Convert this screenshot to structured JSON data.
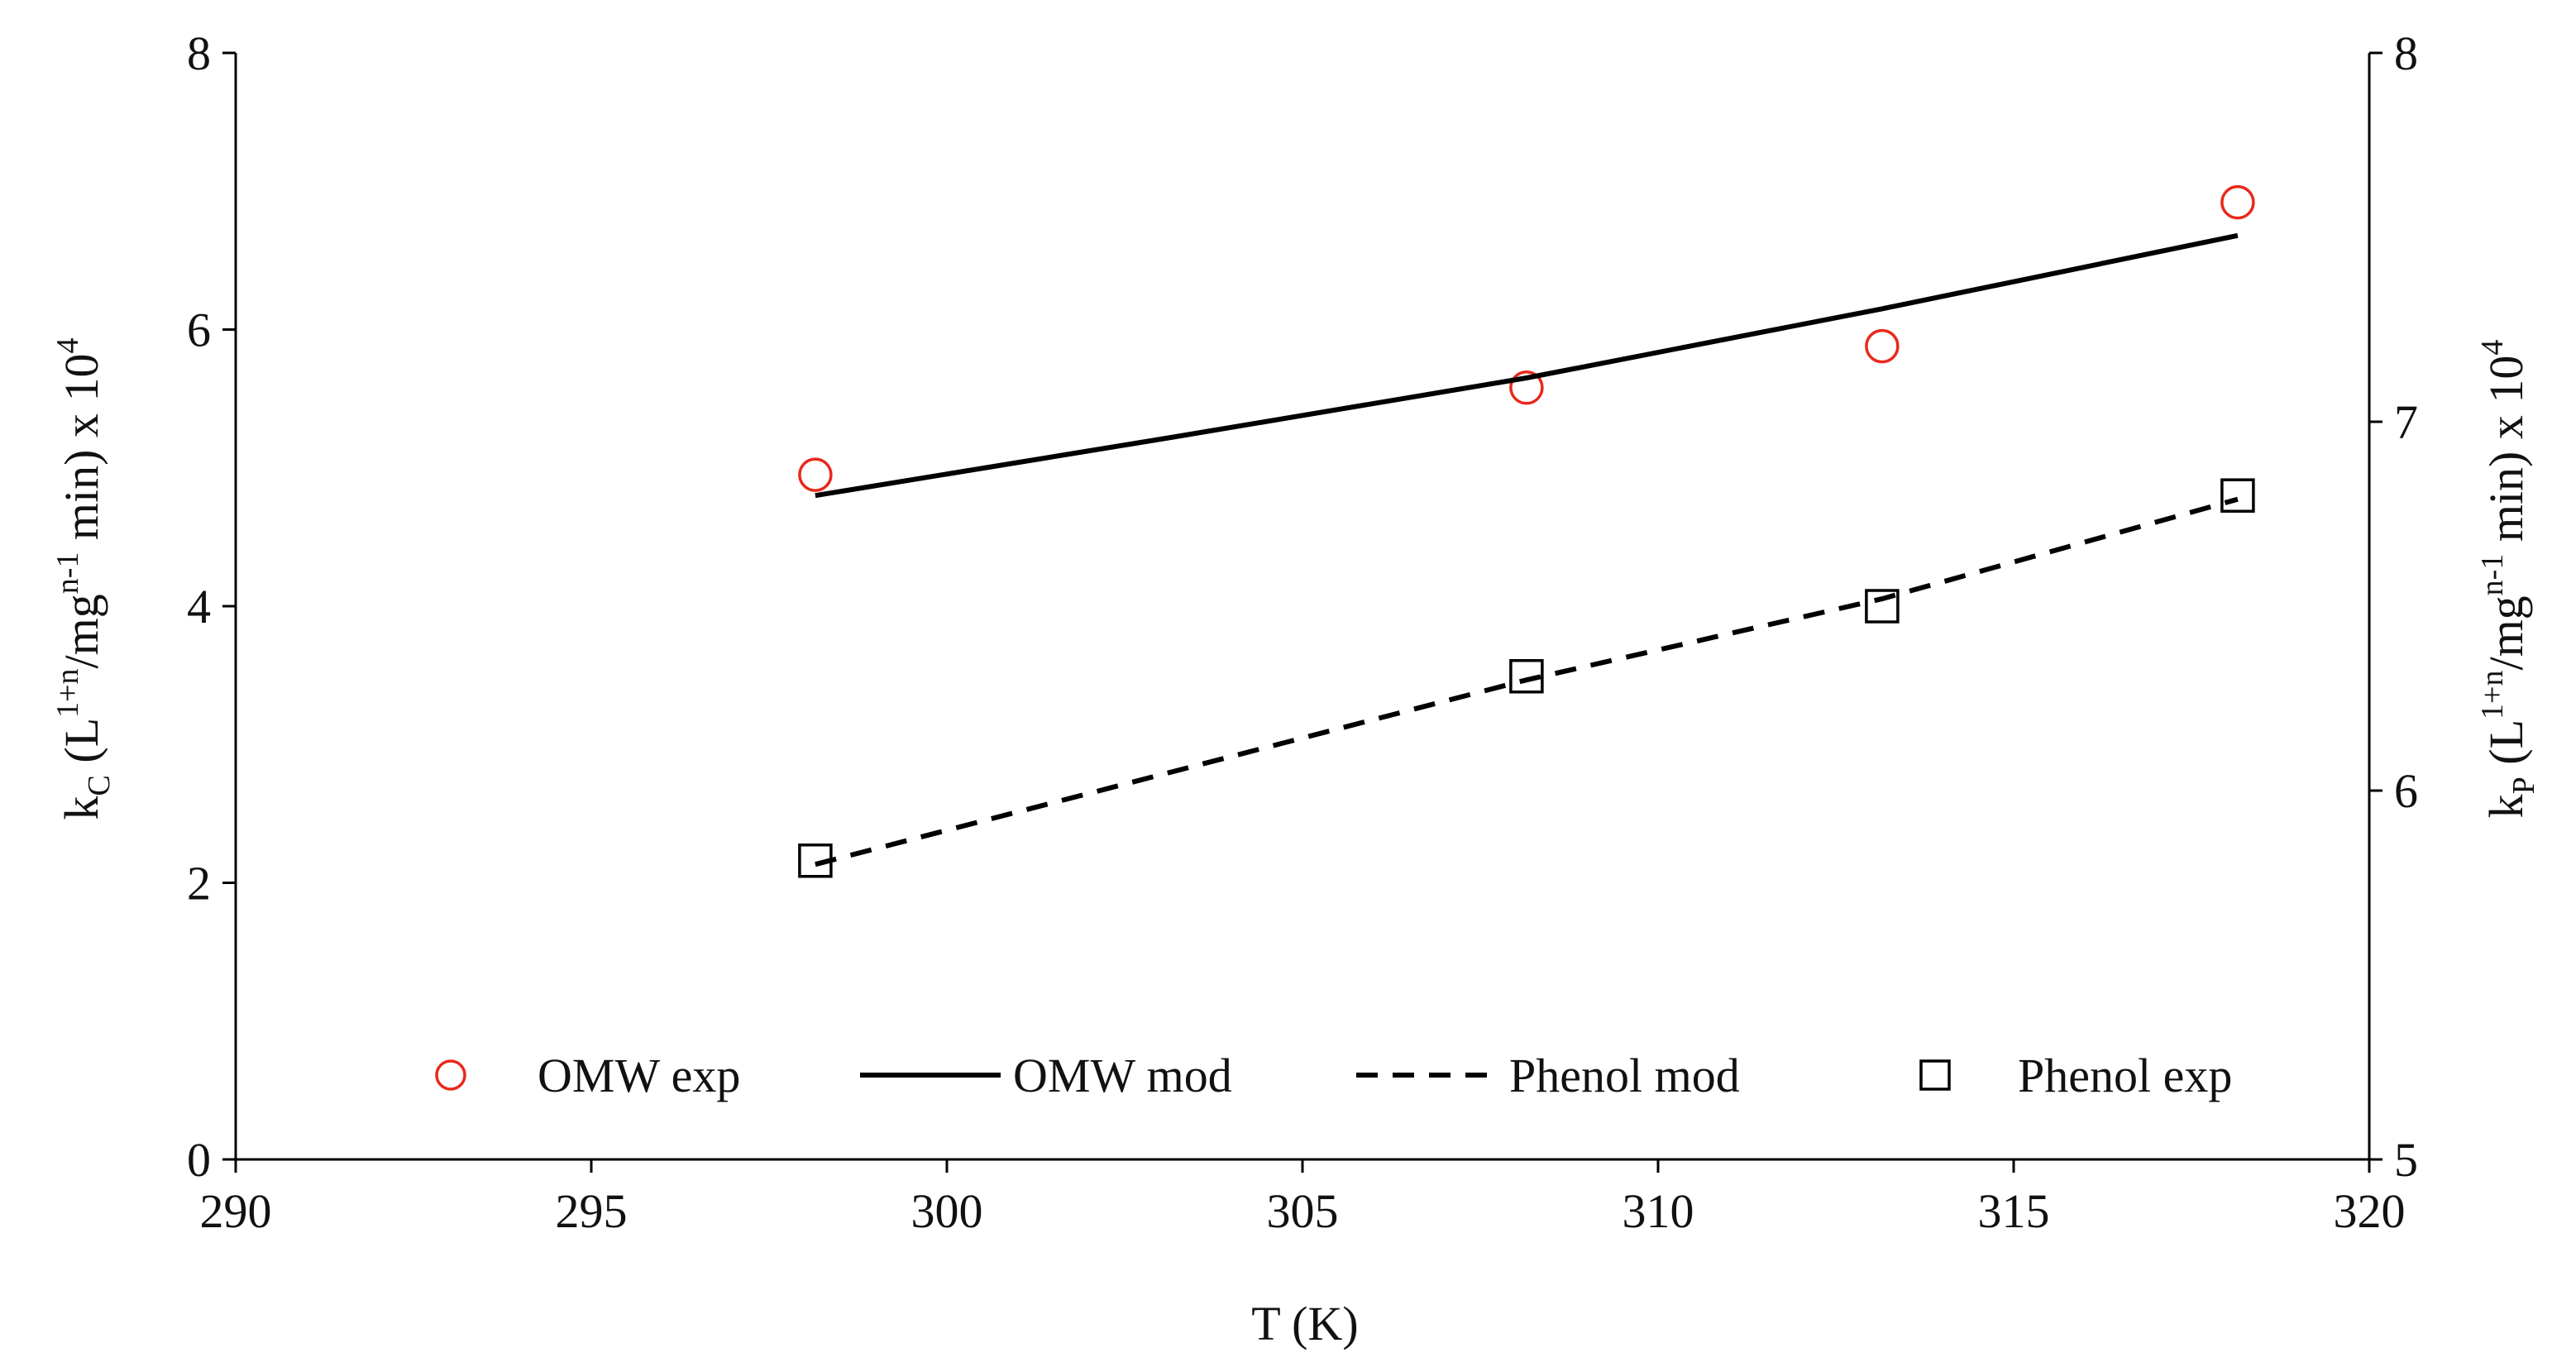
{
  "chart_data": {
    "type": "scatter",
    "title": "",
    "xlabel": "T (K)",
    "ylabel_left": {
      "prefix": "k",
      "subscript": "C",
      "mid1": " (L",
      "sup1": "1+n",
      "mid2": "/mg",
      "sup2": "n-1",
      "mid3": " min) x 10",
      "sup3": "4"
    },
    "ylabel_right": {
      "prefix": "k",
      "subscript": "P",
      "mid1": " (L",
      "sup1": "1+n",
      "mid2": "/mg",
      "sup2": "n-1",
      "mid3": " min) x 10",
      "sup3": "4"
    },
    "xlim": [
      290,
      320
    ],
    "ylim_left": [
      0,
      8
    ],
    "ylim_right": [
      5,
      8
    ],
    "x_ticks": [
      "290",
      "295",
      "300",
      "305",
      "310",
      "315",
      "320"
    ],
    "y_ticks_left": [
      "0",
      "2",
      "4",
      "6",
      "8"
    ],
    "y_ticks_right": [
      "5",
      "6",
      "7",
      "8"
    ],
    "grid": false,
    "legend_position": "bottom-inside",
    "series": [
      {
        "name": "OMW exp",
        "kind": "markers",
        "marker": "circle",
        "color": "#e8291c",
        "axis": "left",
        "x": [
          298.15,
          308.15,
          313.15,
          318.15
        ],
        "y": [
          4.95,
          5.58,
          5.88,
          6.92
        ]
      },
      {
        "name": "OMW mod",
        "kind": "line",
        "dash": "solid",
        "color": "#000000",
        "axis": "left",
        "x": [
          298.15,
          303.15,
          308.15,
          313.15,
          318.15
        ],
        "y": [
          4.8,
          5.22,
          5.65,
          6.15,
          6.68
        ]
      },
      {
        "name": "Phenol mod",
        "kind": "line",
        "dash": "dashed",
        "color": "#000000",
        "axis": "right",
        "x": [
          298.15,
          308.15,
          313.15,
          318.15
        ],
        "y": [
          5.8,
          6.3,
          6.52,
          6.79
        ]
      },
      {
        "name": "Phenol exp",
        "kind": "markers",
        "marker": "square",
        "color": "#000000",
        "axis": "right",
        "x": [
          298.15,
          308.15,
          313.15,
          318.15
        ],
        "y": [
          5.81,
          6.31,
          6.5,
          6.8
        ]
      }
    ],
    "legend": [
      "OMW exp",
      "OMW mod",
      "Phenol mod",
      "Phenol exp"
    ]
  }
}
